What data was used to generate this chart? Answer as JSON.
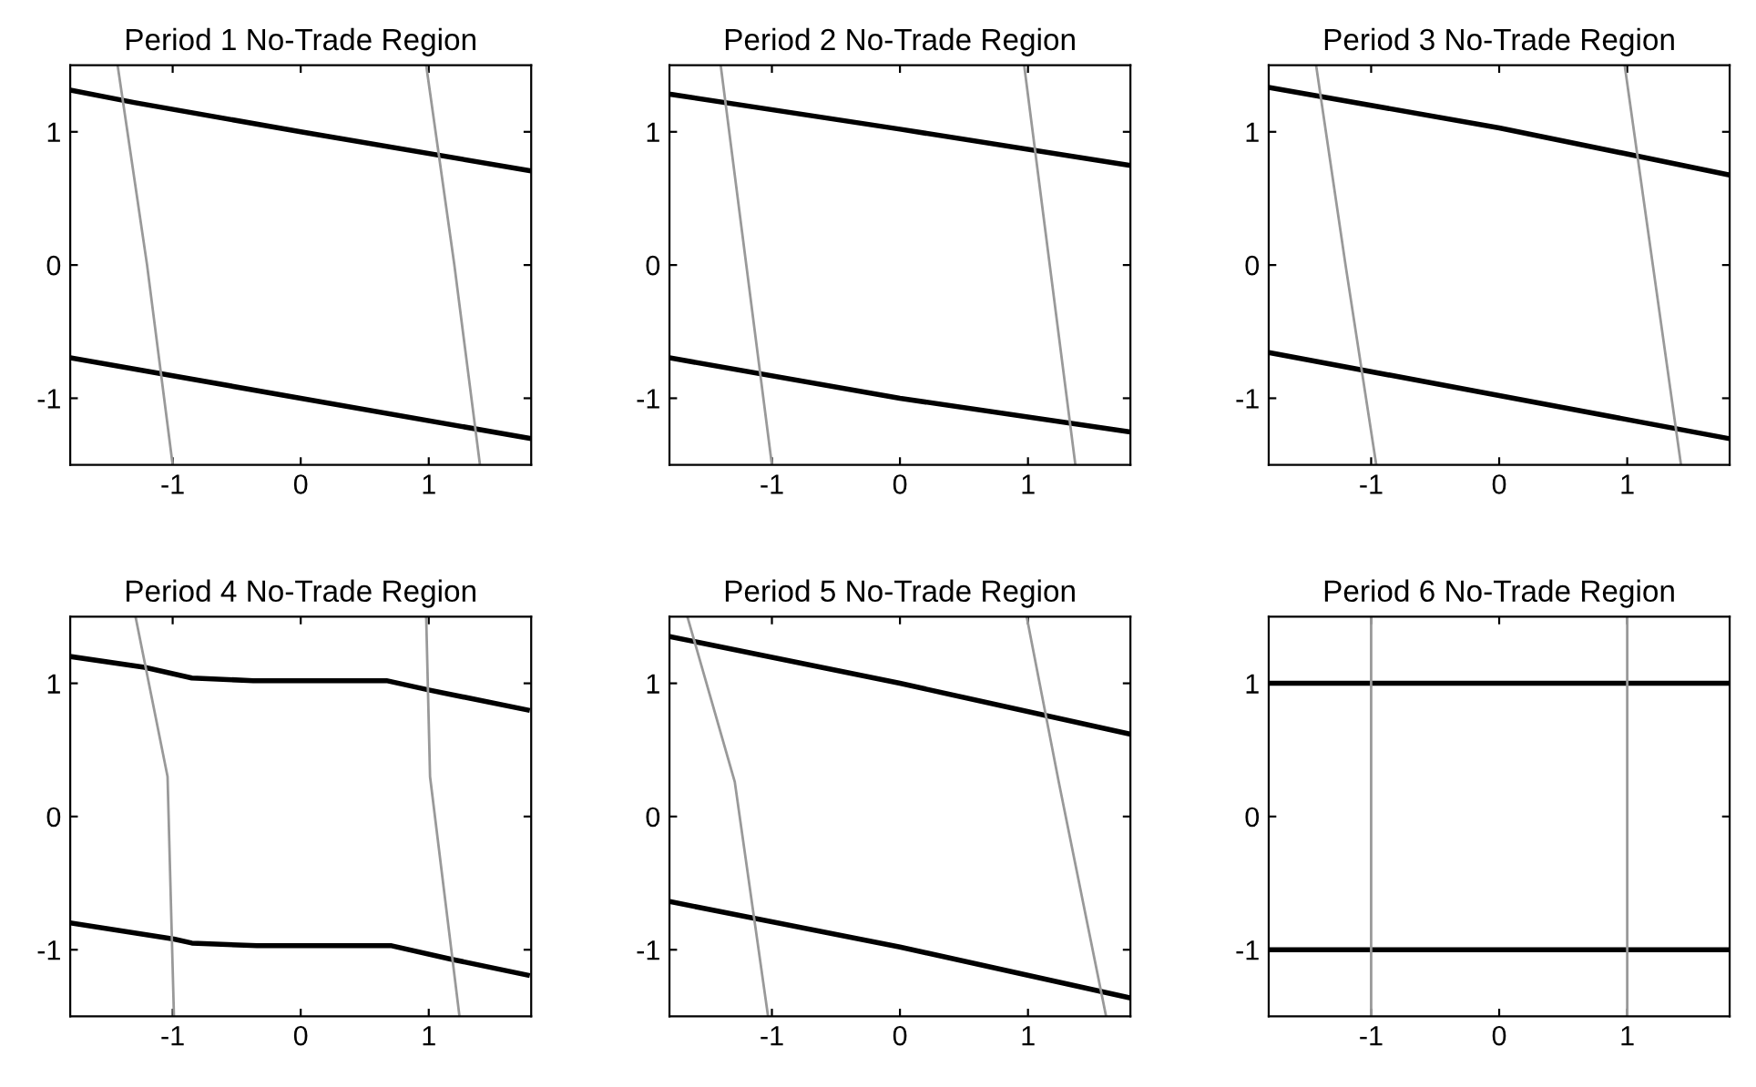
{
  "chart_data": [
    {
      "type": "line",
      "title": "Period 1 No-Trade Region",
      "xlim": [
        -1.8,
        1.8
      ],
      "ylim": [
        -1.5,
        1.5
      ],
      "xticks": [
        -1,
        0,
        1
      ],
      "yticks": [
        -1,
        0,
        1
      ],
      "grid": false,
      "legend": false,
      "series": [
        {
          "color": "#000000",
          "x": [
            -1.78,
            -1.3,
            0,
            1.78
          ],
          "values": [
            1.31,
            1.22,
            1.0,
            0.71
          ]
        },
        {
          "color": "#000000",
          "x": [
            -1.78,
            0,
            1.78
          ],
          "values": [
            -0.7,
            -1.0,
            -1.3
          ]
        },
        {
          "color": "#999999",
          "x": [
            -1.43,
            -1.2,
            -1.0
          ],
          "values": [
            1.5,
            0,
            -1.5
          ]
        },
        {
          "color": "#999999",
          "x": [
            0.98,
            1.2,
            1.4
          ],
          "values": [
            1.5,
            0,
            -1.5
          ]
        }
      ]
    },
    {
      "type": "line",
      "title": "Period 2 No-Trade Region",
      "xlim": [
        -1.8,
        1.8
      ],
      "ylim": [
        -1.5,
        1.5
      ],
      "xticks": [
        -1,
        0,
        1
      ],
      "yticks": [
        -1,
        0,
        1
      ],
      "grid": false,
      "legend": false,
      "series": [
        {
          "color": "#000000",
          "x": [
            -1.78,
            0,
            1.78
          ],
          "values": [
            1.28,
            1.02,
            0.75
          ]
        },
        {
          "color": "#000000",
          "x": [
            -1.78,
            0,
            1.78
          ],
          "values": [
            -0.7,
            -1.0,
            -1.25
          ]
        },
        {
          "color": "#999999",
          "x": [
            -1.4,
            -1.2,
            -1.0
          ],
          "values": [
            1.5,
            0,
            -1.5
          ]
        },
        {
          "color": "#999999",
          "x": [
            0.97,
            1.17,
            1.37
          ],
          "values": [
            1.5,
            0,
            -1.5
          ]
        }
      ]
    },
    {
      "type": "line",
      "title": "Period 3 No-Trade Region",
      "xlim": [
        -1.8,
        1.8
      ],
      "ylim": [
        -1.5,
        1.5
      ],
      "xticks": [
        -1,
        0,
        1
      ],
      "yticks": [
        -1,
        0,
        1
      ],
      "grid": false,
      "legend": false,
      "series": [
        {
          "color": "#000000",
          "x": [
            -1.78,
            0,
            1.78
          ],
          "values": [
            1.33,
            1.03,
            0.68
          ]
        },
        {
          "color": "#000000",
          "x": [
            -1.78,
            0,
            1.78
          ],
          "values": [
            -0.66,
            -0.98,
            -1.3
          ]
        },
        {
          "color": "#999999",
          "x": [
            -1.43,
            -1.2,
            -0.96
          ],
          "values": [
            1.5,
            0,
            -1.5
          ]
        },
        {
          "color": "#999999",
          "x": [
            0.98,
            1.2,
            1.42
          ],
          "values": [
            1.5,
            0,
            -1.5
          ]
        }
      ]
    },
    {
      "type": "line",
      "title": "Period 4 No-Trade Region",
      "xlim": [
        -1.8,
        1.8
      ],
      "ylim": [
        -1.5,
        1.5
      ],
      "xticks": [
        -1,
        0,
        1
      ],
      "yticks": [
        -1,
        0,
        1
      ],
      "grid": false,
      "legend": false,
      "series": [
        {
          "color": "#000000",
          "x": [
            -1.79,
            -1.22,
            -0.85,
            -0.37,
            0.67,
            1.0,
            1.77
          ],
          "values": [
            1.2,
            1.12,
            1.04,
            1.02,
            1.02,
            0.95,
            0.8
          ]
        },
        {
          "color": "#000000",
          "x": [
            -1.79,
            -0.99,
            -0.85,
            -0.34,
            0.71,
            1.17,
            1.77
          ],
          "values": [
            -0.8,
            -0.92,
            -0.95,
            -0.97,
            -0.97,
            -1.07,
            -1.19
          ]
        },
        {
          "color": "#999999",
          "x": [
            -1.29,
            -1.04,
            -0.99
          ],
          "values": [
            1.5,
            0.3,
            -1.5
          ]
        },
        {
          "color": "#999999",
          "x": [
            0.98,
            1.01,
            1.24
          ],
          "values": [
            1.5,
            0.3,
            -1.5
          ]
        }
      ]
    },
    {
      "type": "line",
      "title": "Period 5 No-Trade Region",
      "xlim": [
        -1.8,
        1.8
      ],
      "ylim": [
        -1.5,
        1.5
      ],
      "xticks": [
        -1,
        0,
        1
      ],
      "yticks": [
        -1,
        0,
        1
      ],
      "grid": false,
      "legend": false,
      "series": [
        {
          "color": "#000000",
          "x": [
            -1.79,
            0,
            1.79
          ],
          "values": [
            1.35,
            1.0,
            0.62
          ]
        },
        {
          "color": "#000000",
          "x": [
            -1.79,
            0,
            1.79
          ],
          "values": [
            -0.64,
            -0.98,
            -1.36
          ]
        },
        {
          "color": "#999999",
          "x": [
            -1.66,
            -1.29,
            -1.03
          ],
          "values": [
            1.5,
            0.26,
            -1.5
          ]
        },
        {
          "color": "#999999",
          "x": [
            0.99,
            1.24,
            1.61
          ],
          "values": [
            1.5,
            0.26,
            -1.5
          ]
        }
      ]
    },
    {
      "type": "line",
      "title": "Period 6 No-Trade Region",
      "xlim": [
        -1.8,
        1.8
      ],
      "ylim": [
        -1.5,
        1.5
      ],
      "xticks": [
        -1,
        0,
        1
      ],
      "yticks": [
        -1,
        0,
        1
      ],
      "grid": false,
      "legend": false,
      "series": [
        {
          "color": "#000000",
          "x": [
            -1.8,
            1.8
          ],
          "values": [
            1.0,
            1.0
          ]
        },
        {
          "color": "#000000",
          "x": [
            -1.8,
            1.8
          ],
          "values": [
            -1.0,
            -1.0
          ]
        },
        {
          "color": "#999999",
          "x": [
            -1.0,
            -1.0
          ],
          "values": [
            1.5,
            -1.5
          ]
        },
        {
          "color": "#999999",
          "x": [
            1.0,
            1.0
          ],
          "values": [
            1.5,
            -1.5
          ]
        }
      ]
    }
  ]
}
